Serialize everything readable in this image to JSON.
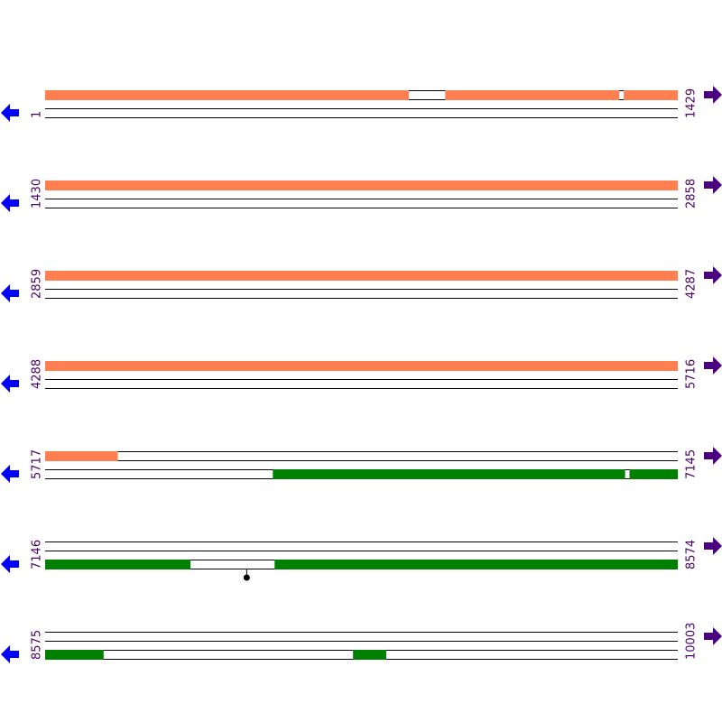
{
  "track_colors": {
    "top": "#ff7f50",
    "bottom": "#008000"
  },
  "rows": [
    {
      "start": 1,
      "end": 1429,
      "top": [
        [
          1,
          822
        ],
        [
          904,
          1297
        ],
        [
          1307,
          1429
        ]
      ],
      "bottom": [],
      "markers": []
    },
    {
      "start": 1430,
      "end": 2858,
      "top": [
        [
          1430,
          2858
        ]
      ],
      "bottom": [],
      "markers": []
    },
    {
      "start": 2859,
      "end": 4287,
      "top": [
        [
          2859,
          4287
        ]
      ],
      "bottom": [],
      "markers": []
    },
    {
      "start": 4288,
      "end": 5716,
      "top": [
        [
          4288,
          5716
        ]
      ],
      "bottom": [],
      "markers": []
    },
    {
      "start": 5717,
      "end": 7145,
      "top": [
        [
          5717,
          5881
        ]
      ],
      "bottom": [
        [
          6231,
          7026
        ],
        [
          7036,
          7145
        ]
      ],
      "markers": []
    },
    {
      "start": 7146,
      "end": 8574,
      "top": [],
      "bottom": [
        [
          7146,
          7474
        ],
        [
          7664,
          8574
        ]
      ],
      "markers": [
        7601
      ]
    },
    {
      "start": 8575,
      "end": 10003,
      "top": [],
      "bottom": [
        [
          8575,
          8707
        ],
        [
          9270,
          9345
        ]
      ],
      "markers": []
    }
  ]
}
